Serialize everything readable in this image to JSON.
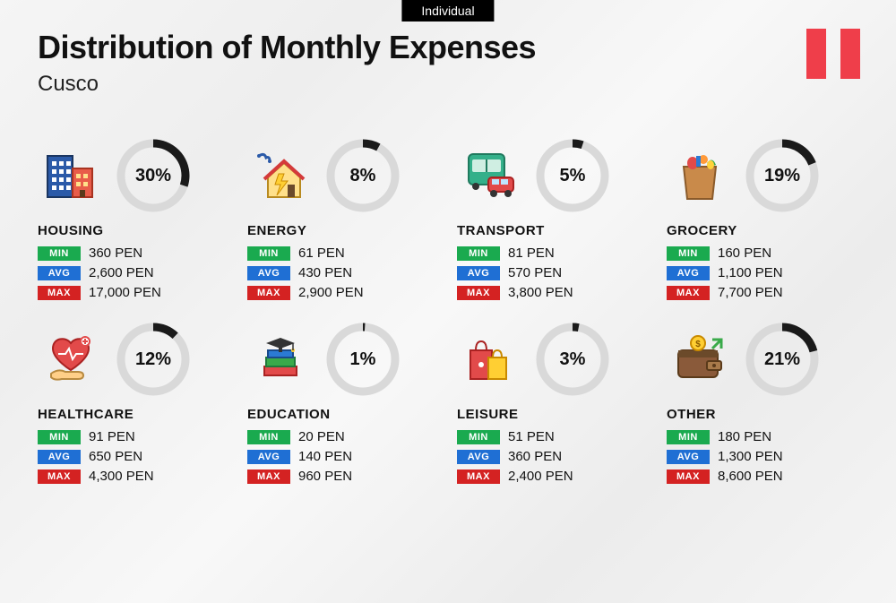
{
  "tab_label": "Individual",
  "title": "Distribution of Monthly Expenses",
  "subtitle": "Cusco",
  "flag_color": "#ef3e4a",
  "labels": {
    "min": "MIN",
    "avg": "AVG",
    "max": "MAX"
  },
  "badge_colors": {
    "min": "#1aaa4f",
    "avg": "#1f6fd4",
    "max": "#d42222"
  },
  "donut": {
    "radius": 36,
    "stroke_width": 9,
    "bg_color": "#d9d9d9",
    "fg_color": "#1a1a1a",
    "pct_fontsize": 20
  },
  "typography": {
    "title_fontsize": 36,
    "title_weight": 800,
    "subtitle_fontsize": 24,
    "catname_fontsize": 15,
    "statval_fontsize": 15
  },
  "categories": [
    {
      "id": "housing",
      "name": "HOUSING",
      "pct": 30,
      "min": "360 PEN",
      "avg": "2,600 PEN",
      "max": "17,000 PEN",
      "icon": "buildings"
    },
    {
      "id": "energy",
      "name": "ENERGY",
      "pct": 8,
      "min": "61 PEN",
      "avg": "430 PEN",
      "max": "2,900 PEN",
      "icon": "energy-house"
    },
    {
      "id": "transport",
      "name": "TRANSPORT",
      "pct": 5,
      "min": "81 PEN",
      "avg": "570 PEN",
      "max": "3,800 PEN",
      "icon": "bus-car"
    },
    {
      "id": "grocery",
      "name": "GROCERY",
      "pct": 19,
      "min": "160 PEN",
      "avg": "1,100 PEN",
      "max": "7,700 PEN",
      "icon": "grocery-bag"
    },
    {
      "id": "healthcare",
      "name": "HEALTHCARE",
      "pct": 12,
      "min": "91 PEN",
      "avg": "650 PEN",
      "max": "4,300 PEN",
      "icon": "heart-hand"
    },
    {
      "id": "education",
      "name": "EDUCATION",
      "pct": 1,
      "min": "20 PEN",
      "avg": "140 PEN",
      "max": "960 PEN",
      "icon": "grad-books"
    },
    {
      "id": "leisure",
      "name": "LEISURE",
      "pct": 3,
      "min": "51 PEN",
      "avg": "360 PEN",
      "max": "2,400 PEN",
      "icon": "shopping-bags"
    },
    {
      "id": "other",
      "name": "OTHER",
      "pct": 21,
      "min": "180 PEN",
      "avg": "1,300 PEN",
      "max": "8,600 PEN",
      "icon": "wallet"
    }
  ]
}
